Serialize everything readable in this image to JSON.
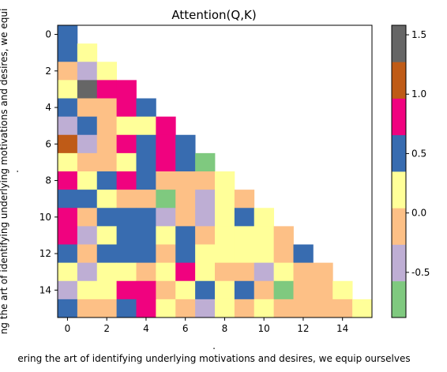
{
  "chart_data": {
    "type": "heatmap",
    "title": "Attention(Q,K)",
    "xlabel": "ering the art of identifying underlying motivations and desires, we equip ourselves",
    "ylabel": "ng the art of identifying underlying motivations and desires, we equi",
    "x_axis_dot": ".",
    "y_axis_dot": ".",
    "rows": 16,
    "cols": 16,
    "x_ticks": [
      "0",
      "2",
      "4",
      "6",
      "8",
      "10",
      "12",
      "14"
    ],
    "y_ticks": [
      "0",
      "2",
      "4",
      "6",
      "8",
      "10",
      "12",
      "14"
    ],
    "colormap": "Accent",
    "clim": [
      -0.88,
      1.58
    ],
    "colorbar_ticks": [
      "-0.5",
      "0.0",
      "0.5",
      "1.0",
      "1.5"
    ],
    "colorbar_tick_values": [
      -0.5,
      0.0,
      0.5,
      1.0,
      1.5
    ],
    "legend_colors": [
      "#7fc97f",
      "#beaed4",
      "#fdc086",
      "#ffff99",
      "#386cb0",
      "#f0027f",
      "#bf5b17",
      "#666666"
    ],
    "masked_color": "#ffffff",
    "matrix": [
      [
        "B"
      ],
      [
        "B",
        "Y"
      ],
      [
        "O",
        "L",
        "Y"
      ],
      [
        "Y",
        "G",
        "M",
        "M"
      ],
      [
        "B",
        "O",
        "O",
        "M",
        "B"
      ],
      [
        "L",
        "B",
        "O",
        "Y",
        "Y",
        "M"
      ],
      [
        "R",
        "L",
        "O",
        "M",
        "B",
        "M",
        "B"
      ],
      [
        "Y",
        "O",
        "O",
        "Y",
        "B",
        "M",
        "B",
        "N"
      ],
      [
        "M",
        "Y",
        "B",
        "M",
        "B",
        "O",
        "O",
        "O",
        "Y"
      ],
      [
        "B",
        "B",
        "Y",
        "O",
        "O",
        "N",
        "O",
        "L",
        "Y",
        "O"
      ],
      [
        "M",
        "O",
        "B",
        "B",
        "B",
        "L",
        "O",
        "L",
        "Y",
        "B",
        "Y"
      ],
      [
        "M",
        "L",
        "Y",
        "B",
        "B",
        "Y",
        "B",
        "O",
        "Y",
        "Y",
        "Y",
        "O"
      ],
      [
        "B",
        "O",
        "B",
        "B",
        "B",
        "O",
        "B",
        "Y",
        "Y",
        "Y",
        "Y",
        "O",
        "B"
      ],
      [
        "Y",
        "L",
        "Y",
        "Y",
        "O",
        "Y",
        "M",
        "Y",
        "O",
        "O",
        "L",
        "Y",
        "O",
        "O"
      ],
      [
        "L",
        "Y",
        "Y",
        "M",
        "M",
        "O",
        "Y",
        "B",
        "Y",
        "B",
        "O",
        "N",
        "O",
        "O",
        "Y"
      ],
      [
        "B",
        "O",
        "O",
        "B",
        "M",
        "Y",
        "O",
        "L",
        "Y",
        "O",
        "Y",
        "O",
        "O",
        "O",
        "O",
        "Y"
      ]
    ],
    "value_key": {
      "N": -0.78,
      "L": -0.47,
      "O": -0.16,
      "Y": 0.16,
      "B": 0.47,
      "M": 0.78,
      "R": 1.09,
      "G": 1.4
    },
    "grid": false
  }
}
